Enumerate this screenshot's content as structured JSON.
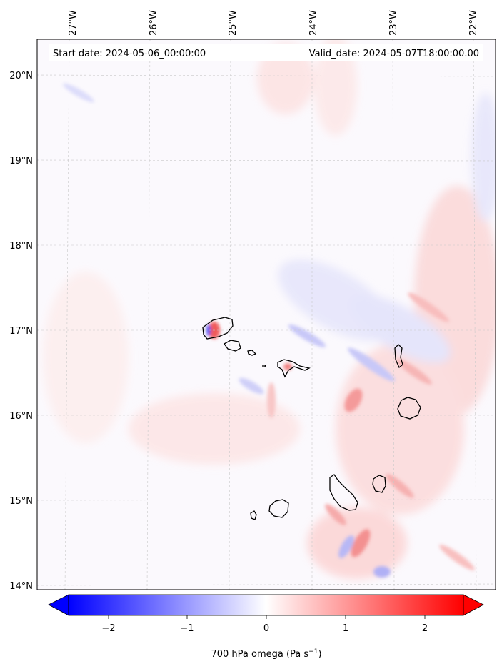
{
  "header": {
    "start_date": "Start date: 2024-05-06_00:00:00",
    "valid_date": "Valid_date: 2024-05-07T18:00:00.00"
  },
  "longitude_labels": [
    "27°W",
    "26°W",
    "25°W",
    "24°W",
    "23°W",
    "22°W"
  ],
  "latitude_labels": [
    "20°N",
    "19°N",
    "18°N",
    "17°N",
    "16°N",
    "15°N",
    "14°N"
  ],
  "colorbar": {
    "ticks": [
      "−2",
      "−1",
      "0",
      "1",
      "2"
    ],
    "label": "700 hPa omega (Pa s",
    "label_sup": "−1",
    "label_close": ")",
    "range": [
      -2.6,
      2.6
    ],
    "colormap": "bwr",
    "color_min": "#0000ff",
    "color_mid": "#ffffff",
    "color_max": "#ff0000"
  },
  "map": {
    "lon_range": [
      -27.35,
      -21.75
    ],
    "lat_range": [
      13.95,
      20.45
    ],
    "gridlines": true,
    "coastline_color": "#000000",
    "field": "700 hPa omega"
  }
}
